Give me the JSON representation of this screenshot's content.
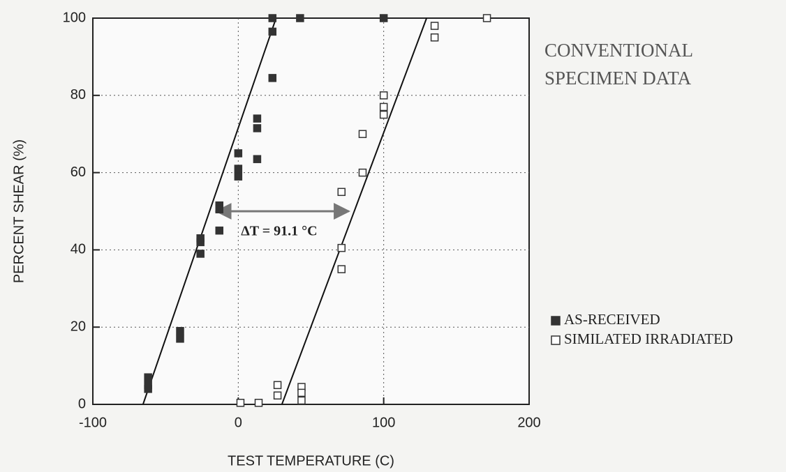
{
  "chart_data": {
    "type": "scatter",
    "title": [
      "CONVENTIONAL",
      "SPECIMEN DATA"
    ],
    "xlabel": "TEST TEMPERATURE (C)",
    "ylabel": "PERCENT SHEAR (%)",
    "xlim": [
      -100,
      200
    ],
    "ylim": [
      0,
      100
    ],
    "xticks": [
      -100,
      0,
      100,
      200
    ],
    "yticks": [
      0,
      20,
      40,
      60,
      80,
      100
    ],
    "grid": true,
    "legend": "right",
    "series": [
      {
        "name": "AS-RECEIVED",
        "color": "#333333",
        "marker": "filled",
        "x": [
          -62,
          -62,
          -62,
          -40,
          -40,
          -26,
          -26,
          -26,
          -13,
          -13,
          -13,
          0,
          0,
          0,
          13,
          13,
          13,
          23.5,
          23.5,
          23.5,
          42.5,
          100
        ],
        "values": [
          7,
          5,
          4,
          19,
          17,
          43,
          42,
          39,
          51.5,
          50.5,
          45,
          65,
          61,
          59,
          74,
          71.5,
          63.5,
          100,
          96.5,
          84.5,
          100,
          100
        ]
      },
      {
        "name": "SIMILATED IRRADIATED",
        "color": "#333333",
        "marker": "open",
        "x": [
          1.5,
          14,
          27,
          27,
          43.5,
          43.5,
          43.5,
          71,
          71,
          71,
          85.5,
          85.5,
          100,
          100,
          100,
          135,
          135,
          171
        ],
        "values": [
          0.4,
          0.4,
          5,
          2.3,
          4.5,
          3,
          1,
          55,
          40.5,
          35,
          70,
          60,
          80,
          77,
          75,
          98,
          95,
          100
        ]
      }
    ],
    "fit_lines": [
      {
        "x": [
          -65.5,
          26
        ],
        "y": [
          0,
          100
        ]
      },
      {
        "x": [
          30,
          129.5
        ],
        "y": [
          0,
          100
        ]
      }
    ],
    "annotation": {
      "text": "ΔT = 91.1 °C",
      "x": [
        -15,
        76
      ],
      "y": 50
    }
  }
}
